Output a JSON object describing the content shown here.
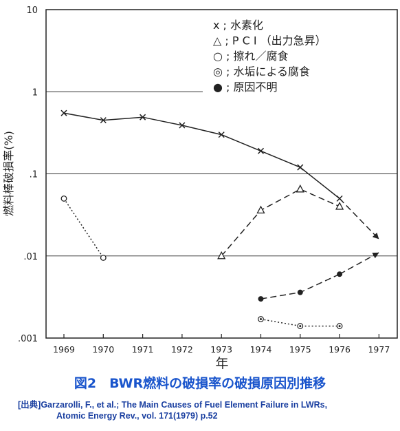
{
  "figure": {
    "caption": "図2　BWR燃料の破損率の破損原因別推移",
    "source_prefix": "[出典]",
    "source_line1": "Garzarolli, F., et al.; The Main Causes of Fuel Element Failure in LWRs,",
    "source_line2": "Atomic Energy Rev., vol. 171(1979) p.52",
    "caption_color": "#1a55cc",
    "source_color": "#1a3fa0"
  },
  "chart_data": {
    "type": "line",
    "xlabel": "年",
    "ylabel": "燃料棒破損率(%)",
    "x": [
      1969,
      1970,
      1971,
      1972,
      1973,
      1974,
      1975,
      1976,
      1977
    ],
    "x_tick_labels": [
      "1969",
      "1970",
      "1971",
      "1972",
      "1973",
      "1974",
      "1975",
      "1976",
      "1977"
    ],
    "y_scale": "log",
    "ylim": [
      0.001,
      10
    ],
    "y_tick_labels": [
      "10",
      "1",
      ".1",
      ".01",
      ".001"
    ],
    "y_tick_values": [
      10,
      1,
      0.1,
      0.01,
      0.001
    ],
    "grid": "horizontal at decades",
    "legend_position": "top-right",
    "series": [
      {
        "key": "hydride",
        "name": "水素化",
        "legend_label": "x ; 水素化",
        "marker": "x",
        "line": "solid",
        "x": [
          1969,
          1970,
          1971,
          1972,
          1973,
          1974,
          1975,
          1976
        ],
        "values": [
          0.55,
          0.45,
          0.49,
          0.39,
          0.3,
          0.19,
          0.12,
          0.05
        ],
        "trend_to": [
          1977,
          0.016
        ]
      },
      {
        "key": "pci",
        "name": "PCI（出力急昇）",
        "legend_label": "△ ; P C I （出力急昇）",
        "marker": "triangle",
        "line": "dashed",
        "x": [
          1973,
          1974,
          1975,
          1976
        ],
        "values": [
          0.01,
          0.036,
          0.065,
          0.04
        ],
        "trend_to": null
      },
      {
        "key": "fretting",
        "name": "擦れ／腐食",
        "legend_label": "○ ; 擦れ／腐食",
        "marker": "open-circle",
        "line": "dotted",
        "x": [
          1969,
          1970
        ],
        "values": [
          0.05,
          0.0095
        ],
        "trend_to": null
      },
      {
        "key": "crud",
        "name": "水垢による腐食",
        "legend_label": "◎ ; 水垢による腐食",
        "marker": "dotted-circle",
        "line": "dotted",
        "x": [
          1974,
          1975,
          1976
        ],
        "values": [
          0.0017,
          0.0014,
          0.0014
        ],
        "trend_to": null
      },
      {
        "key": "unknown",
        "name": "原因不明",
        "legend_label": "● ; 原因不明",
        "marker": "filled-circle",
        "line": "dashed",
        "x": [
          1974,
          1975,
          1976
        ],
        "values": [
          0.003,
          0.0036,
          0.006
        ],
        "trend_to": [
          1977,
          0.011
        ]
      }
    ]
  }
}
